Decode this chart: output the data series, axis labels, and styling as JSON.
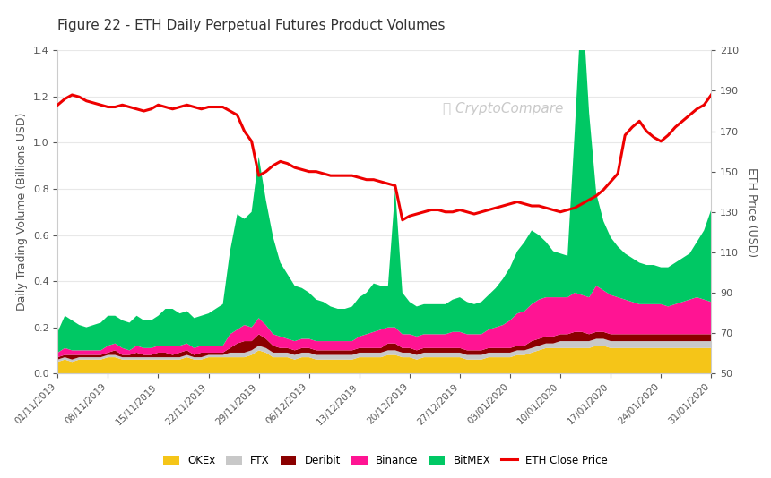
{
  "title": "Figure 22 - ETH Daily Perpetual Futures Product Volumes",
  "ylabel_left": "Daily Trading Volume (Billions USD)",
  "ylabel_right": "ETH Price (USD)",
  "watermark": "CryptoCompare",
  "x_labels": [
    "01/11/2019",
    "08/11/2019",
    "15/11/2019",
    "22/11/2019",
    "29/11/2019",
    "06/12/2019",
    "13/12/2019",
    "20/12/2019",
    "27/12/2019",
    "03/01/2020",
    "10/01/2020",
    "17/01/2020",
    "24/01/2020",
    "31/01/2020"
  ],
  "ylim_left": [
    0,
    1.4
  ],
  "ylim_right": [
    50,
    210
  ],
  "yticks_left": [
    0,
    0.2,
    0.4,
    0.6,
    0.8,
    1.0,
    1.2,
    1.4
  ],
  "yticks_right": [
    50,
    70,
    90,
    110,
    130,
    150,
    170,
    190,
    210
  ],
  "colors": {
    "OKEx": "#F5C518",
    "FTX": "#C8C8C8",
    "Deribit": "#8B0000",
    "Binance": "#FF1493",
    "BitMEX": "#00C864",
    "ETH": "#EE0000"
  },
  "n_points": 92,
  "OKEx": [
    0.05,
    0.06,
    0.05,
    0.06,
    0.06,
    0.06,
    0.06,
    0.07,
    0.07,
    0.06,
    0.06,
    0.06,
    0.06,
    0.06,
    0.06,
    0.06,
    0.06,
    0.06,
    0.07,
    0.06,
    0.06,
    0.07,
    0.07,
    0.07,
    0.07,
    0.07,
    0.07,
    0.08,
    0.1,
    0.09,
    0.07,
    0.07,
    0.07,
    0.06,
    0.07,
    0.07,
    0.06,
    0.06,
    0.06,
    0.06,
    0.06,
    0.06,
    0.07,
    0.07,
    0.07,
    0.07,
    0.08,
    0.08,
    0.07,
    0.07,
    0.06,
    0.07,
    0.07,
    0.07,
    0.07,
    0.07,
    0.07,
    0.06,
    0.06,
    0.06,
    0.07,
    0.07,
    0.07,
    0.07,
    0.08,
    0.08,
    0.09,
    0.1,
    0.11,
    0.11,
    0.11,
    0.11,
    0.11,
    0.11,
    0.11,
    0.12,
    0.12,
    0.11,
    0.11,
    0.11,
    0.11,
    0.11,
    0.11,
    0.11,
    0.11,
    0.11,
    0.11,
    0.11,
    0.11,
    0.11,
    0.11,
    0.11
  ],
  "FTX": [
    0.01,
    0.01,
    0.01,
    0.01,
    0.01,
    0.01,
    0.01,
    0.01,
    0.01,
    0.01,
    0.01,
    0.01,
    0.01,
    0.01,
    0.01,
    0.01,
    0.01,
    0.01,
    0.01,
    0.01,
    0.01,
    0.01,
    0.01,
    0.01,
    0.02,
    0.02,
    0.02,
    0.02,
    0.02,
    0.02,
    0.02,
    0.02,
    0.02,
    0.02,
    0.02,
    0.02,
    0.02,
    0.02,
    0.02,
    0.02,
    0.02,
    0.02,
    0.02,
    0.02,
    0.02,
    0.02,
    0.02,
    0.02,
    0.02,
    0.02,
    0.02,
    0.02,
    0.02,
    0.02,
    0.02,
    0.02,
    0.02,
    0.02,
    0.02,
    0.02,
    0.02,
    0.02,
    0.02,
    0.02,
    0.02,
    0.02,
    0.02,
    0.02,
    0.02,
    0.02,
    0.03,
    0.03,
    0.03,
    0.03,
    0.03,
    0.03,
    0.03,
    0.03,
    0.03,
    0.03,
    0.03,
    0.03,
    0.03,
    0.03,
    0.03,
    0.03,
    0.03,
    0.03,
    0.03,
    0.03,
    0.03,
    0.03
  ],
  "Deribit": [
    0.01,
    0.01,
    0.02,
    0.01,
    0.01,
    0.01,
    0.01,
    0.01,
    0.02,
    0.01,
    0.01,
    0.02,
    0.01,
    0.01,
    0.02,
    0.02,
    0.01,
    0.02,
    0.02,
    0.01,
    0.02,
    0.01,
    0.01,
    0.01,
    0.02,
    0.04,
    0.05,
    0.04,
    0.05,
    0.04,
    0.03,
    0.02,
    0.02,
    0.02,
    0.02,
    0.02,
    0.02,
    0.02,
    0.02,
    0.02,
    0.02,
    0.02,
    0.02,
    0.02,
    0.02,
    0.02,
    0.03,
    0.03,
    0.02,
    0.02,
    0.02,
    0.02,
    0.02,
    0.02,
    0.02,
    0.02,
    0.02,
    0.02,
    0.02,
    0.02,
    0.02,
    0.02,
    0.02,
    0.02,
    0.02,
    0.02,
    0.03,
    0.03,
    0.03,
    0.03,
    0.03,
    0.03,
    0.04,
    0.04,
    0.03,
    0.03,
    0.03,
    0.03,
    0.03,
    0.03,
    0.03,
    0.03,
    0.03,
    0.03,
    0.03,
    0.03,
    0.03,
    0.03,
    0.03,
    0.03,
    0.03,
    0.03
  ],
  "Binance": [
    0.02,
    0.03,
    0.02,
    0.02,
    0.02,
    0.02,
    0.02,
    0.03,
    0.03,
    0.03,
    0.02,
    0.03,
    0.03,
    0.03,
    0.03,
    0.03,
    0.04,
    0.03,
    0.03,
    0.03,
    0.03,
    0.03,
    0.03,
    0.03,
    0.06,
    0.06,
    0.07,
    0.06,
    0.07,
    0.06,
    0.05,
    0.05,
    0.04,
    0.04,
    0.04,
    0.04,
    0.04,
    0.04,
    0.04,
    0.04,
    0.04,
    0.04,
    0.05,
    0.06,
    0.07,
    0.08,
    0.07,
    0.07,
    0.06,
    0.06,
    0.06,
    0.06,
    0.06,
    0.06,
    0.06,
    0.07,
    0.07,
    0.07,
    0.07,
    0.07,
    0.08,
    0.09,
    0.1,
    0.12,
    0.14,
    0.15,
    0.16,
    0.17,
    0.17,
    0.17,
    0.16,
    0.16,
    0.17,
    0.16,
    0.16,
    0.2,
    0.18,
    0.17,
    0.16,
    0.15,
    0.14,
    0.13,
    0.13,
    0.13,
    0.13,
    0.12,
    0.13,
    0.14,
    0.15,
    0.16,
    0.15,
    0.14
  ],
  "BitMEX": [
    0.09,
    0.14,
    0.13,
    0.11,
    0.1,
    0.11,
    0.12,
    0.13,
    0.12,
    0.12,
    0.12,
    0.13,
    0.12,
    0.12,
    0.13,
    0.16,
    0.16,
    0.14,
    0.14,
    0.13,
    0.13,
    0.14,
    0.16,
    0.18,
    0.36,
    0.5,
    0.46,
    0.5,
    0.7,
    0.54,
    0.42,
    0.32,
    0.28,
    0.24,
    0.22,
    0.2,
    0.18,
    0.17,
    0.15,
    0.14,
    0.14,
    0.15,
    0.17,
    0.18,
    0.21,
    0.19,
    0.18,
    0.6,
    0.18,
    0.14,
    0.13,
    0.13,
    0.13,
    0.13,
    0.13,
    0.14,
    0.15,
    0.14,
    0.13,
    0.14,
    0.15,
    0.17,
    0.2,
    0.23,
    0.27,
    0.3,
    0.32,
    0.28,
    0.24,
    0.2,
    0.19,
    0.18,
    0.7,
    1.3,
    0.8,
    0.4,
    0.3,
    0.25,
    0.22,
    0.2,
    0.19,
    0.18,
    0.17,
    0.17,
    0.16,
    0.17,
    0.18,
    0.19,
    0.2,
    0.24,
    0.3,
    0.4
  ],
  "ETH_price": [
    183,
    186,
    188,
    187,
    185,
    184,
    183,
    182,
    182,
    183,
    182,
    181,
    180,
    181,
    183,
    182,
    181,
    182,
    183,
    182,
    181,
    182,
    182,
    182,
    180,
    178,
    170,
    165,
    148,
    150,
    153,
    155,
    154,
    152,
    151,
    150,
    150,
    149,
    148,
    148,
    148,
    148,
    147,
    146,
    146,
    145,
    144,
    143,
    126,
    128,
    129,
    130,
    131,
    131,
    130,
    130,
    131,
    130,
    129,
    130,
    131,
    132,
    133,
    134,
    135,
    134,
    133,
    133,
    132,
    131,
    130,
    131,
    132,
    134,
    136,
    138,
    141,
    145,
    149,
    168,
    172,
    175,
    170,
    167,
    165,
    168,
    172,
    175,
    178,
    181,
    183,
    188
  ]
}
